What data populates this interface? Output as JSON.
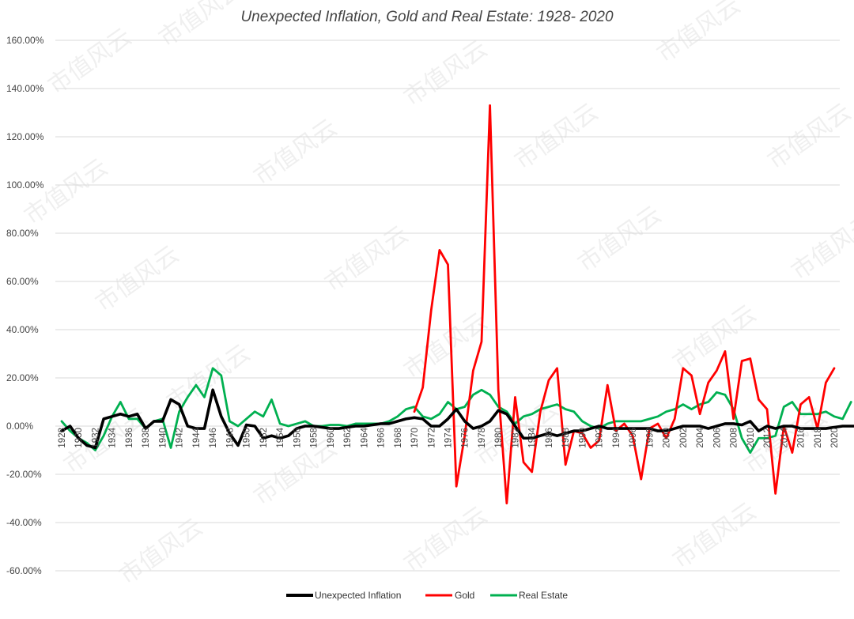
{
  "watermark": "市值风云",
  "chart_data": {
    "type": "line",
    "title": "Unexpected Inflation, Gold and Real Estate: 1928- 2020",
    "xlabel": "",
    "ylabel": "",
    "xlim": [
      1928,
      2020
    ],
    "ylim": [
      -0.6,
      1.6
    ],
    "yticks": [
      -0.6,
      -0.4,
      -0.2,
      0.0,
      0.2,
      0.4,
      0.6,
      0.8,
      1.0,
      1.2,
      1.4,
      1.6
    ],
    "ytick_labels": [
      "-60.00%",
      "-40.00%",
      "-20.00%",
      "0.00%",
      "20.00%",
      "40.00%",
      "60.00%",
      "80.00%",
      "100.00%",
      "120.00%",
      "140.00%",
      "160.00%"
    ],
    "xtick_labels": [
      "1928",
      "1930",
      "1932",
      "1934",
      "1936",
      "1938",
      "1940",
      "1942",
      "1944",
      "1946",
      "1948",
      "1950",
      "1952",
      "1954",
      "1956",
      "1958",
      "1960",
      "1962",
      "1964",
      "1966",
      "1968",
      "1970",
      "1972",
      "1974",
      "1976",
      "1978",
      "1980",
      "1982",
      "1984",
      "1986",
      "1988",
      "1990",
      "1992",
      "1994",
      "1996",
      "1998",
      "2000",
      "2002",
      "2004",
      "2006",
      "2008",
      "2010",
      "2012",
      "2014",
      "2016",
      "2018",
      "2020"
    ],
    "grid": true,
    "legend_position": "bottom",
    "series": [
      {
        "name": "Unexpected Inflation",
        "color": "#000000",
        "start_year": 1928,
        "values": [
          -0.02,
          0.0,
          -0.05,
          -0.08,
          -0.09,
          0.03,
          0.04,
          0.05,
          0.04,
          0.05,
          -0.01,
          0.02,
          0.02,
          0.11,
          0.09,
          0.0,
          -0.01,
          -0.01,
          0.15,
          0.04,
          -0.03,
          -0.08,
          0.005,
          0.0,
          -0.05,
          -0.04,
          -0.05,
          -0.04,
          -0.01,
          0.0,
          0.0,
          -0.005,
          -0.01,
          -0.01,
          -0.005,
          0.0,
          0.0,
          0.005,
          0.01,
          0.01,
          0.02,
          0.03,
          0.035,
          0.03,
          0.0,
          0.0,
          0.03,
          0.07,
          0.02,
          -0.01,
          0.0,
          0.02,
          0.065,
          0.05,
          0.0,
          -0.05,
          -0.05,
          -0.04,
          -0.03,
          -0.04,
          -0.03,
          -0.02,
          -0.02,
          -0.01,
          0.0,
          -0.01,
          -0.01,
          -0.01,
          -0.01,
          -0.01,
          -0.01,
          -0.02,
          -0.02,
          -0.01,
          0.0,
          0.0,
          0.0,
          -0.01,
          0.0,
          0.01,
          0.01,
          0.005,
          0.02,
          -0.02,
          0.0,
          -0.01,
          0.0,
          0.0,
          -0.01,
          -0.01,
          -0.01,
          -0.01,
          -0.005,
          0.0,
          0.0,
          0.0,
          -0.01
        ]
      },
      {
        "name": "Gold",
        "color": "#ff0000",
        "start_year": 1970,
        "values": [
          0.06,
          0.16,
          0.48,
          0.73,
          0.67,
          -0.25,
          -0.04,
          0.23,
          0.35,
          1.33,
          0.15,
          -0.32,
          0.12,
          -0.15,
          -0.19,
          0.06,
          0.19,
          0.24,
          -0.16,
          -0.02,
          -0.03,
          -0.09,
          -0.06,
          0.17,
          -0.02,
          0.01,
          -0.04,
          -0.22,
          -0.01,
          0.01,
          -0.05,
          0.03,
          0.24,
          0.21,
          0.05,
          0.18,
          0.23,
          0.31,
          0.03,
          0.27,
          0.28,
          0.11,
          0.07,
          -0.28,
          0.0,
          -0.11,
          0.09,
          0.12,
          -0.01,
          0.18,
          0.24
        ]
      },
      {
        "name": "Real Estate",
        "color": "#00b050",
        "start_year": 1928,
        "values": [
          0.02,
          -0.02,
          -0.05,
          -0.07,
          -0.1,
          -0.04,
          0.04,
          0.1,
          0.03,
          0.03,
          -0.01,
          0.02,
          0.03,
          -0.09,
          0.06,
          0.12,
          0.17,
          0.12,
          0.24,
          0.21,
          0.02,
          0.0,
          0.03,
          0.06,
          0.04,
          0.11,
          0.01,
          0.0,
          0.01,
          0.02,
          0.0,
          0.0,
          0.005,
          0.005,
          0.0,
          0.01,
          0.01,
          0.01,
          0.01,
          0.02,
          0.04,
          0.07,
          0.08,
          0.04,
          0.03,
          0.05,
          0.1,
          0.07,
          0.08,
          0.13,
          0.15,
          0.13,
          0.08,
          0.06,
          0.01,
          0.04,
          0.05,
          0.07,
          0.08,
          0.09,
          0.07,
          0.06,
          0.02,
          0.0,
          -0.01,
          0.01,
          0.02,
          0.02,
          0.02,
          0.02,
          0.03,
          0.04,
          0.06,
          0.07,
          0.09,
          0.07,
          0.09,
          0.1,
          0.14,
          0.13,
          0.07,
          -0.05,
          -0.11,
          -0.05,
          -0.05,
          -0.04,
          0.08,
          0.1,
          0.05,
          0.05,
          0.05,
          0.06,
          0.04,
          0.03,
          0.1
        ]
      }
    ]
  }
}
